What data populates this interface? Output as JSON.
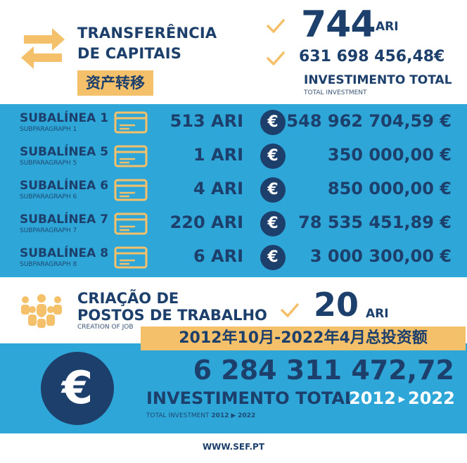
{
  "colors": {
    "navy": "#1c3f6b",
    "sky_blue": "#2fa6d8",
    "gold": "#f4c06a",
    "white": "#ffffff"
  },
  "transfer": {
    "icon": "exchange-arrows-icon",
    "title_line1": "TRANSFERÊNCIA",
    "title_line2": "DE CAPITAIS",
    "chinese_label": "资产转移"
  },
  "summary": {
    "ari_count": "744",
    "ari_unit": "ARI",
    "total_amount": "631 698 456,48€",
    "total_label": "INVESTIMENTO TOTAL",
    "total_sub_label": "TOTAL INVESTMENT"
  },
  "rows": [
    {
      "label": "SUBALÍNEA 1",
      "sub": "SUBPARAGRAPH 1",
      "ari": "513 ARI",
      "amount": "548 962 704,59 €"
    },
    {
      "label": "SUBALÍNEA 5",
      "sub": "SUBPARAGRAPH 5",
      "ari": "1 ARI",
      "amount": "350 000,00 €"
    },
    {
      "label": "SUBALÍNEA 6",
      "sub": "SUBPARAGRAPH 6",
      "ari": "4 ARI",
      "amount": "850 000,00 €"
    },
    {
      "label": "SUBALÍNEA 7",
      "sub": "SUBPARAGRAPH 7",
      "ari": "220 ARI",
      "amount": "78 535 451,89 €"
    },
    {
      "label": "SUBALÍNEA 8",
      "sub": "SUBPARAGRAPH 8",
      "ari": "6 ARI",
      "amount": "3 000 300,00 €"
    }
  ],
  "row_icons": {
    "card": "card-icon",
    "euro": "euro-coin-icon"
  },
  "euro_symbol": "€",
  "jobs": {
    "icon": "people-group-icon",
    "title_line1": "CRIAÇÃO DE",
    "title_line2": "POSTOS DE TRABALHO",
    "sub_label": "CREATION OF JOB",
    "count": "20",
    "unit": "ARI",
    "chinese_label": "2012年10月-2022年4月总投资额"
  },
  "total": {
    "value": "6 284 311 472,72",
    "label": "INVESTIMENTO TOTAL",
    "period_start": "2012",
    "period_end": "2022",
    "arrow": "▶",
    "sub_label": "TOTAL INVESTMENT",
    "sub_period_start": "2012",
    "sub_period_end": "2022"
  },
  "footer": {
    "website": "WWW.SEF.PT"
  }
}
